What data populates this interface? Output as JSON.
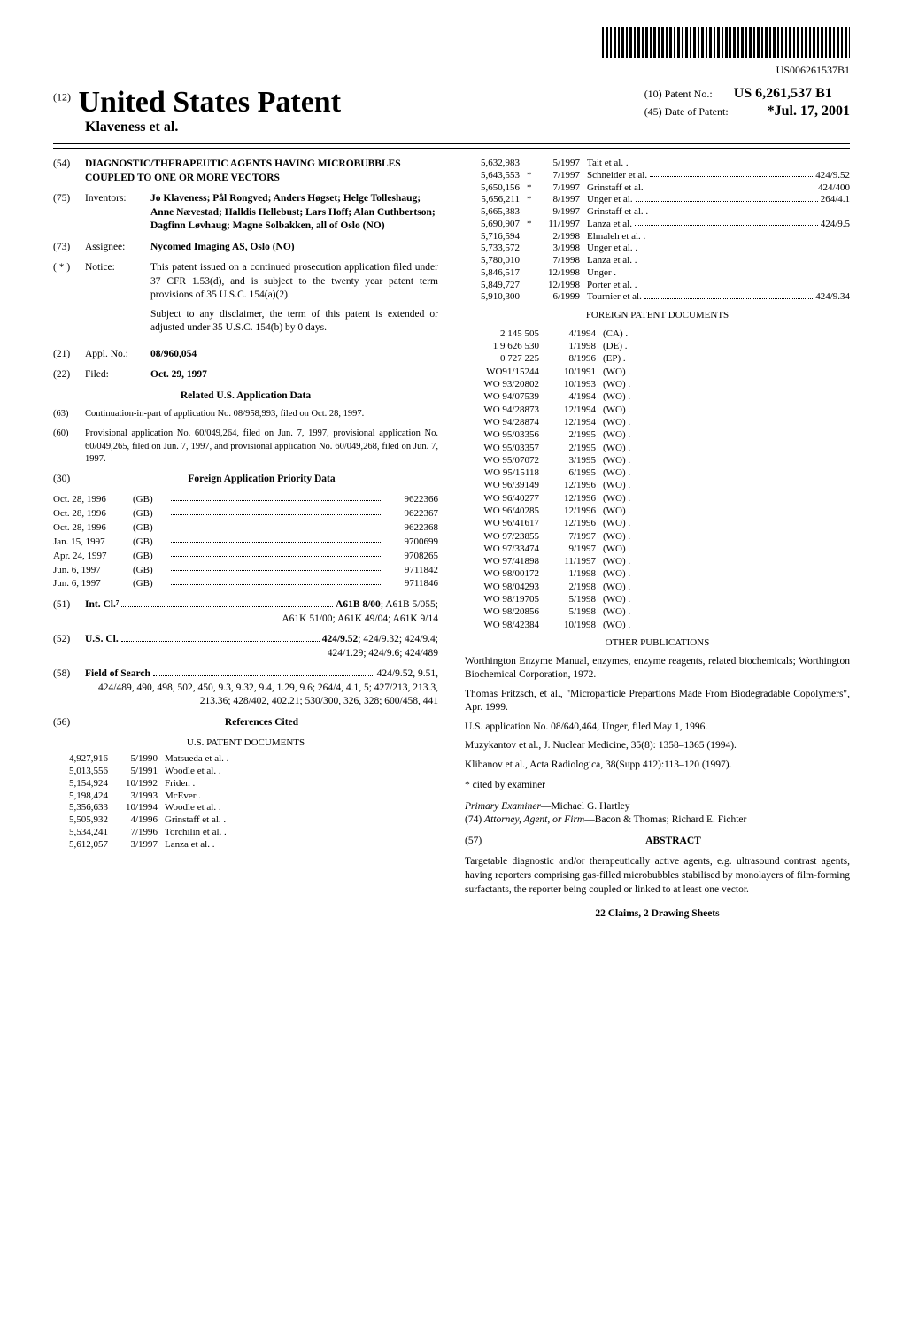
{
  "barcode_num": "US006261537B1",
  "header": {
    "doc_type_num": "(12)",
    "doc_type": "United States Patent",
    "inventors_short": "Klaveness et al.",
    "patent_no_label": "(10) Patent No.:",
    "patent_no": "US 6,261,537 B1",
    "date_label": "(45) Date of Patent:",
    "date": "*Jul. 17, 2001"
  },
  "title": {
    "num": "(54)",
    "text": "DIAGNOSTIC/THERAPEUTIC AGENTS HAVING MICROBUBBLES COUPLED TO ONE OR MORE VECTORS"
  },
  "inventors": {
    "num": "(75)",
    "label": "Inventors:",
    "text": "Jo Klaveness; Pål Rongved; Anders Høgset; Helge Tolleshaug; Anne Nævestad; Halldis Hellebust; Lars Hoff; Alan Cuthbertson; Dagfinn Løvhaug; Magne Solbakken, all of Oslo (NO)"
  },
  "assignee": {
    "num": "(73)",
    "label": "Assignee:",
    "text": "Nycomed Imaging AS, Oslo (NO)"
  },
  "notice": {
    "num": "( * )",
    "label": "Notice:",
    "para1": "This patent issued on a continued prosecution application filed under 37 CFR 1.53(d), and is subject to the twenty year patent term provisions of 35 U.S.C. 154(a)(2).",
    "para2": "Subject to any disclaimer, the term of this patent is extended or adjusted under 35 U.S.C. 154(b) by 0 days."
  },
  "appl": {
    "num": "(21)",
    "label": "Appl. No.:",
    "val": "08/960,054"
  },
  "filed": {
    "num": "(22)",
    "label": "Filed:",
    "val": "Oct. 29, 1997"
  },
  "related_title": "Related U.S. Application Data",
  "related": [
    {
      "num": "(63)",
      "text": "Continuation-in-part of application No. 08/958,993, filed on Oct. 28, 1997."
    },
    {
      "num": "(60)",
      "text": "Provisional application No. 60/049,264, filed on Jun. 7, 1997, provisional application No. 60/049,265, filed on Jun. 7, 1997, and provisional application No. 60/049,268, filed on Jun. 7, 1997."
    }
  ],
  "foreign_priority": {
    "num": "(30)",
    "title": "Foreign Application Priority Data",
    "rows": [
      {
        "date": "Oct. 28, 1996",
        "cc": "(GB)",
        "num": "9622366"
      },
      {
        "date": "Oct. 28, 1996",
        "cc": "(GB)",
        "num": "9622367"
      },
      {
        "date": "Oct. 28, 1996",
        "cc": "(GB)",
        "num": "9622368"
      },
      {
        "date": "Jan. 15, 1997",
        "cc": "(GB)",
        "num": "9700699"
      },
      {
        "date": "Apr. 24, 1997",
        "cc": "(GB)",
        "num": "9708265"
      },
      {
        "date": "Jun. 6, 1997",
        "cc": "(GB)",
        "num": "9711842"
      },
      {
        "date": "Jun. 6, 1997",
        "cc": "(GB)",
        "num": "9711846"
      }
    ]
  },
  "intcl": {
    "num": "(51)",
    "label": "Int. Cl.⁷",
    "main": "A61B 8/00",
    "rest": "; A61B 5/055; A61K 51/00; A61K 49/04; A61K 9/14"
  },
  "uscl": {
    "num": "(52)",
    "label": "U.S. Cl.",
    "main": "424/9.52",
    "rest": "; 424/9.32; 424/9.4; 424/1.29; 424/9.6; 424/489"
  },
  "field": {
    "num": "(58)",
    "label": "Field of Search",
    "main": "424/9.52, 9.51,",
    "rest": "424/489, 490, 498, 502, 450, 9.3, 9.32, 9.4, 1.29, 9.6; 264/4, 4.1, 5; 427/213, 213.3, 213.36; 428/402, 402.21; 530/300, 326, 328; 600/458, 441"
  },
  "refs_title": {
    "num": "(56)",
    "title": "References Cited"
  },
  "us_patents_title": "U.S. PATENT DOCUMENTS",
  "us_patents_left": [
    {
      "num": "4,927,916",
      "date": "5/1990",
      "name": "Matsueda et al. ."
    },
    {
      "num": "5,013,556",
      "date": "5/1991",
      "name": "Woodle et al. ."
    },
    {
      "num": "5,154,924",
      "date": "10/1992",
      "name": "Friden ."
    },
    {
      "num": "5,198,424",
      "date": "3/1993",
      "name": "McEver ."
    },
    {
      "num": "5,356,633",
      "date": "10/1994",
      "name": "Woodle et al. ."
    },
    {
      "num": "5,505,932",
      "date": "4/1996",
      "name": "Grinstaff et al. ."
    },
    {
      "num": "5,534,241",
      "date": "7/1996",
      "name": "Torchilin et al. ."
    },
    {
      "num": "5,612,057",
      "date": "3/1997",
      "name": "Lanza et al. ."
    }
  ],
  "us_patents_right": [
    {
      "num": "5,632,983",
      "ast": "",
      "date": "5/1997",
      "name": "Tait et al. .",
      "cls": ""
    },
    {
      "num": "5,643,553",
      "ast": "*",
      "date": "7/1997",
      "name": "Schneider et al.",
      "cls": "424/9.52"
    },
    {
      "num": "5,650,156",
      "ast": "*",
      "date": "7/1997",
      "name": "Grinstaff et al.",
      "cls": "424/400"
    },
    {
      "num": "5,656,211",
      "ast": "*",
      "date": "8/1997",
      "name": "Unger et al.",
      "cls": "264/4.1"
    },
    {
      "num": "5,665,383",
      "ast": "",
      "date": "9/1997",
      "name": "Grinstaff et al. .",
      "cls": ""
    },
    {
      "num": "5,690,907",
      "ast": "*",
      "date": "11/1997",
      "name": "Lanza et al.",
      "cls": "424/9.5"
    },
    {
      "num": "5,716,594",
      "ast": "",
      "date": "2/1998",
      "name": "Elmaleh et al. .",
      "cls": ""
    },
    {
      "num": "5,733,572",
      "ast": "",
      "date": "3/1998",
      "name": "Unger et al. .",
      "cls": ""
    },
    {
      "num": "5,780,010",
      "ast": "",
      "date": "7/1998",
      "name": "Lanza et al. .",
      "cls": ""
    },
    {
      "num": "5,846,517",
      "ast": "",
      "date": "12/1998",
      "name": "Unger .",
      "cls": ""
    },
    {
      "num": "5,849,727",
      "ast": "",
      "date": "12/1998",
      "name": "Porter et al. .",
      "cls": ""
    },
    {
      "num": "5,910,300",
      "ast": "",
      "date": "6/1999",
      "name": "Tournier et al.",
      "cls": "424/9.34"
    }
  ],
  "foreign_patents_title": "FOREIGN PATENT DOCUMENTS",
  "foreign_patents": [
    {
      "num": "2 145 505",
      "date": "4/1994",
      "cc": "(CA) ."
    },
    {
      "num": "1 9 626 530",
      "date": "1/1998",
      "cc": "(DE) ."
    },
    {
      "num": "0 727 225",
      "date": "8/1996",
      "cc": "(EP) ."
    },
    {
      "num": "WO91/15244",
      "date": "10/1991",
      "cc": "(WO) ."
    },
    {
      "num": "WO 93/20802",
      "date": "10/1993",
      "cc": "(WO) ."
    },
    {
      "num": "WO 94/07539",
      "date": "4/1994",
      "cc": "(WO) ."
    },
    {
      "num": "WO 94/28873",
      "date": "12/1994",
      "cc": "(WO) ."
    },
    {
      "num": "WO 94/28874",
      "date": "12/1994",
      "cc": "(WO) ."
    },
    {
      "num": "WO 95/03356",
      "date": "2/1995",
      "cc": "(WO) ."
    },
    {
      "num": "WO 95/03357",
      "date": "2/1995",
      "cc": "(WO) ."
    },
    {
      "num": "WO 95/07072",
      "date": "3/1995",
      "cc": "(WO) ."
    },
    {
      "num": "WO 95/15118",
      "date": "6/1995",
      "cc": "(WO) ."
    },
    {
      "num": "WO 96/39149",
      "date": "12/1996",
      "cc": "(WO) ."
    },
    {
      "num": "WO 96/40277",
      "date": "12/1996",
      "cc": "(WO) ."
    },
    {
      "num": "WO 96/40285",
      "date": "12/1996",
      "cc": "(WO) ."
    },
    {
      "num": "WO 96/41617",
      "date": "12/1996",
      "cc": "(WO) ."
    },
    {
      "num": "WO 97/23855",
      "date": "7/1997",
      "cc": "(WO) ."
    },
    {
      "num": "WO 97/33474",
      "date": "9/1997",
      "cc": "(WO) ."
    },
    {
      "num": "WO 97/41898",
      "date": "11/1997",
      "cc": "(WO) ."
    },
    {
      "num": "WO 98/00172",
      "date": "1/1998",
      "cc": "(WO) ."
    },
    {
      "num": "WO 98/04293",
      "date": "2/1998",
      "cc": "(WO) ."
    },
    {
      "num": "WO 98/19705",
      "date": "5/1998",
      "cc": "(WO) ."
    },
    {
      "num": "WO 98/20856",
      "date": "5/1998",
      "cc": "(WO) ."
    },
    {
      "num": "WO 98/42384",
      "date": "10/1998",
      "cc": "(WO) ."
    }
  ],
  "other_pubs_title": "OTHER PUBLICATIONS",
  "other_pubs": [
    "Worthington Enzyme Manual, enzymes, enzyme reagents, related biochemicals; Worthington Biochemical Corporation, 1972.",
    "Thomas Fritzsch, et al., \"Microparticle Prepartions Made From Biodegradable Copolymers\", Apr. 1999.",
    "U.S. application No. 08/640,464, Unger, filed May 1, 1996.",
    "Muzykantov et al., J. Nuclear Medicine, 35(8): 1358–1365 (1994).",
    "Klibanov et al., Acta Radiologica, 38(Supp 412):113–120 (1997)."
  ],
  "cited_by": "* cited by examiner",
  "examiner_label": "Primary Examiner",
  "examiner": "—Michael G. Hartley",
  "attorney_label": "(74) Attorney, Agent, or Firm",
  "attorney": "—Bacon & Thomas; Richard E. Fichter",
  "abstract": {
    "num": "(57)",
    "title": "ABSTRACT",
    "text": "Targetable diagnostic and/or therapeutically active agents, e.g. ultrasound contrast agents, having reporters comprising gas-filled microbubbles stabilised by monolayers of film-forming surfactants, the reporter being coupled or linked to at least one vector."
  },
  "claims": "22 Claims, 2 Drawing Sheets"
}
